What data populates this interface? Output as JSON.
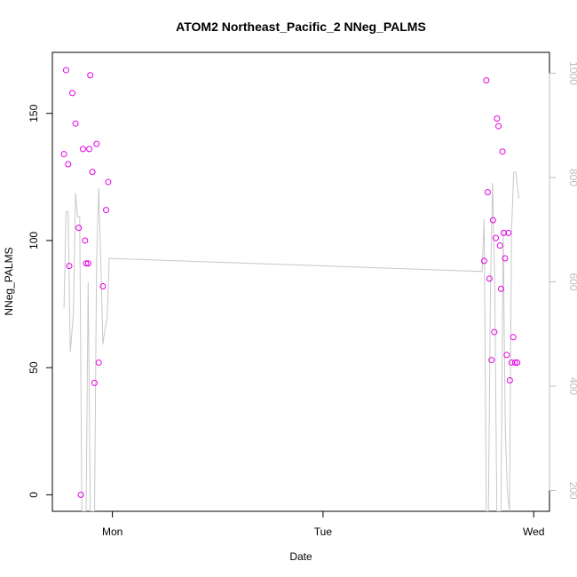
{
  "chart_data": {
    "type": "scatter",
    "title": "ATOM2 Northeast_Pacific_2 NNeg_PALMS",
    "xlabel": "Date",
    "ylabel": "NNeg_PALMS",
    "x_ticks": [
      {
        "label": "Mon",
        "value": 1.0
      },
      {
        "label": "Tue",
        "value": 2.0
      },
      {
        "label": "Wed",
        "value": 3.0
      }
    ],
    "xlim": [
      0.715,
      3.075
    ],
    "ylim": [
      -6.5,
      174
    ],
    "y_ticks": [
      0,
      50,
      100,
      150
    ],
    "y2_ticks": [
      200,
      400,
      600,
      800,
      1000
    ],
    "y2lim": [
      1040,
      160
    ],
    "grid": false,
    "colors": {
      "points": "#e600e6",
      "line": "#c8c8c8",
      "axis": "#000000",
      "right_axis": "#bdbdbd"
    },
    "series": [
      {
        "kind": "points",
        "x": [
          0.77,
          0.78,
          0.79,
          0.795,
          0.81,
          0.825,
          0.84,
          0.85,
          0.86,
          0.87,
          0.875,
          0.885,
          0.89,
          0.895,
          0.905,
          0.915,
          0.925,
          0.935,
          0.955,
          0.97
        ],
        "y": [
          134,
          167,
          130,
          90,
          158,
          146,
          105,
          0,
          136,
          100,
          91,
          91,
          136,
          165,
          127,
          44,
          138,
          52,
          82,
          112
        ],
        "extra_x": [
          0.98
        ],
        "extra_y": [
          123
        ]
      },
      {
        "kind": "points",
        "x": [
          2.765,
          2.775,
          2.782,
          2.79,
          2.8,
          2.807,
          2.813,
          2.82,
          2.826,
          2.833,
          2.84,
          2.845,
          2.852,
          2.858,
          2.864,
          2.872,
          2.88,
          2.887,
          2.895,
          2.903,
          2.912,
          2.922
        ],
        "y": [
          92,
          163,
          119,
          85,
          53,
          108,
          64,
          101,
          148,
          145,
          98,
          81,
          135,
          103,
          93,
          55,
          103,
          45,
          52,
          62,
          52,
          52
        ]
      },
      {
        "kind": "line",
        "axis": "right",
        "x": [
          0.77,
          0.78,
          0.79,
          0.8,
          0.815,
          0.825,
          0.835,
          0.845,
          0.855,
          0.865,
          0.875,
          0.885,
          0.895,
          0.905,
          0.915,
          0.925,
          0.935,
          0.945,
          0.955,
          0.965,
          0.975,
          0.985,
          2.755,
          2.765,
          2.775,
          2.785,
          2.795,
          2.805,
          2.815,
          2.825,
          2.835,
          2.845,
          2.855,
          2.865,
          2.875,
          2.885,
          2.895,
          2.905,
          2.915,
          2.93
        ],
        "y": [
          550,
          735,
          735,
          465,
          540,
          770,
          725,
          725,
          160,
          160,
          160,
          600,
          160,
          160,
          160,
          640,
          780,
          640,
          480,
          510,
          530,
          645,
          620,
          720,
          160,
          160,
          600,
          790,
          600,
          160,
          160,
          160,
          700,
          320,
          200,
          160,
          700,
          810,
          810,
          760
        ]
      }
    ]
  }
}
